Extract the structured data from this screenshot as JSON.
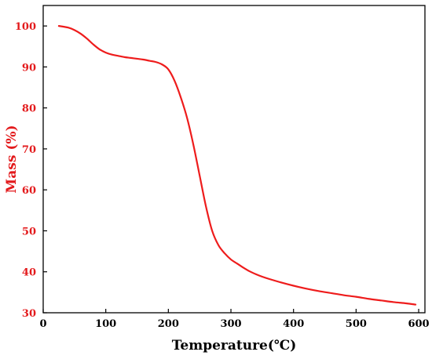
{
  "chart_data": {
    "type": "line",
    "title": "",
    "xlabel": "Temperature(℃)",
    "ylabel": "Mass (%)",
    "xlim": [
      0,
      610
    ],
    "ylim": [
      30,
      105
    ],
    "x_ticks": [
      "0",
      "100",
      "200",
      "300",
      "400",
      "500",
      "600"
    ],
    "y_ticks": [
      "30",
      "40",
      "50",
      "60",
      "70",
      "80",
      "90",
      "100"
    ],
    "grid": false,
    "legend": "none",
    "colors": {
      "series": "#ee1c1c",
      "y_axis_text": "#e31a1c",
      "x_axis_text": "#000000",
      "axis": "#000000"
    },
    "series": [
      {
        "x": [
          25,
          40,
          50,
          60,
          70,
          80,
          90,
          100,
          110,
          120,
          130,
          140,
          150,
          160,
          170,
          180,
          190,
          200,
          210,
          220,
          230,
          240,
          250,
          260,
          270,
          280,
          290,
          300,
          310,
          320,
          330,
          340,
          350,
          360,
          380,
          400,
          420,
          440,
          460,
          480,
          500,
          520,
          540,
          560,
          580,
          595
        ],
        "y": [
          100,
          99.6,
          99.0,
          98.1,
          96.9,
          95.5,
          94.3,
          93.5,
          93.0,
          92.7,
          92.4,
          92.2,
          92.0,
          91.8,
          91.5,
          91.2,
          90.6,
          89.4,
          86.6,
          82.5,
          77.5,
          71.0,
          63.5,
          56.0,
          50.0,
          46.5,
          44.5,
          43.0,
          42.0,
          41.0,
          40.1,
          39.4,
          38.8,
          38.3,
          37.4,
          36.6,
          35.9,
          35.3,
          34.8,
          34.3,
          33.9,
          33.4,
          33.0,
          32.6,
          32.3,
          32.0
        ]
      }
    ]
  }
}
